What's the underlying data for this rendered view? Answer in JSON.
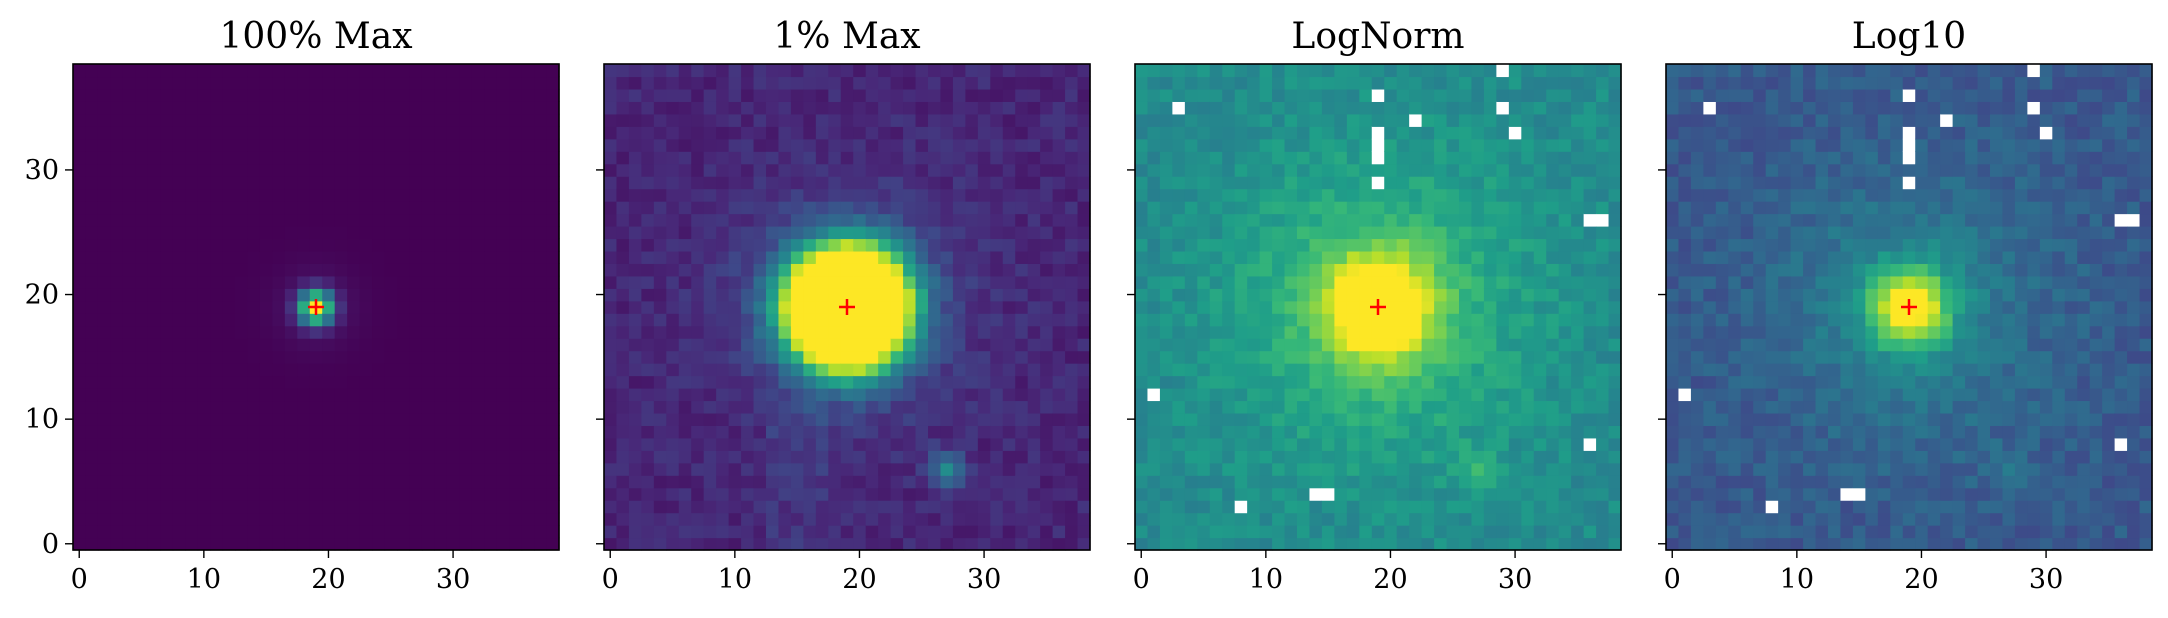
{
  "figure": {
    "panel_titles": [
      "100% Max",
      "1% Max",
      "LogNorm",
      "Log10"
    ]
  },
  "chart_data": [
    {
      "type": "heatmap",
      "title": "100% Max",
      "colormap": "viridis",
      "grid_size": 39,
      "xlim": [
        -0.5,
        38.5
      ],
      "ylim": [
        -0.5,
        38.5
      ],
      "xticks": [
        0,
        10,
        20,
        30
      ],
      "yticks": [
        0,
        10,
        20,
        30
      ],
      "show_ytick_labels": true,
      "source_peak": [
        19,
        19
      ],
      "secondary_source": [
        27,
        6
      ],
      "marker": {
        "x": 19,
        "y": 19,
        "symbol": "+",
        "color": "#ff0000"
      },
      "missing_pixels": []
    },
    {
      "type": "heatmap",
      "title": "1% Max",
      "colormap": "viridis",
      "grid_size": 39,
      "xlim": [
        -0.5,
        38.5
      ],
      "ylim": [
        -0.5,
        38.5
      ],
      "xticks": [
        0,
        10,
        20,
        30
      ],
      "yticks": [
        0,
        10,
        20,
        30
      ],
      "show_ytick_labels": false,
      "source_peak": [
        19,
        19
      ],
      "secondary_source": [
        27,
        6
      ],
      "marker": {
        "x": 19,
        "y": 19,
        "symbol": "+",
        "color": "#ff0000"
      },
      "missing_pixels": []
    },
    {
      "type": "heatmap",
      "title": "LogNorm",
      "colormap": "viridis",
      "grid_size": 39,
      "xlim": [
        -0.5,
        38.5
      ],
      "ylim": [
        -0.5,
        38.5
      ],
      "xticks": [
        0,
        10,
        20,
        30
      ],
      "yticks": [
        0,
        10,
        20,
        30
      ],
      "show_ytick_labels": false,
      "source_peak": [
        19,
        19
      ],
      "secondary_source": [
        27,
        6
      ],
      "marker": {
        "x": 19,
        "y": 19,
        "symbol": "+",
        "color": "#ff0000"
      },
      "missing_pixels": [
        [
          29,
          38
        ],
        [
          3,
          35
        ],
        [
          19,
          36
        ],
        [
          29,
          35
        ],
        [
          22,
          34
        ],
        [
          30,
          33
        ],
        [
          19,
          33
        ],
        [
          19,
          32
        ],
        [
          19,
          31
        ],
        [
          19,
          29
        ],
        [
          36,
          26
        ],
        [
          37,
          26
        ],
        [
          1,
          12
        ],
        [
          36,
          8
        ],
        [
          14,
          4
        ],
        [
          15,
          4
        ],
        [
          8,
          3
        ]
      ]
    },
    {
      "type": "heatmap",
      "title": "Log10",
      "colormap": "viridis",
      "grid_size": 39,
      "xlim": [
        -0.5,
        38.5
      ],
      "ylim": [
        -0.5,
        38.5
      ],
      "xticks": [
        0,
        10,
        20,
        30
      ],
      "yticks": [
        0,
        10,
        20,
        30
      ],
      "show_ytick_labels": false,
      "source_peak": [
        19,
        19
      ],
      "secondary_source": [
        27,
        6
      ],
      "marker": {
        "x": 19,
        "y": 19,
        "symbol": "+",
        "color": "#ff0000"
      },
      "missing_pixels": [
        [
          29,
          38
        ],
        [
          3,
          35
        ],
        [
          19,
          36
        ],
        [
          29,
          35
        ],
        [
          22,
          34
        ],
        [
          30,
          33
        ],
        [
          19,
          33
        ],
        [
          19,
          32
        ],
        [
          19,
          31
        ],
        [
          19,
          29
        ],
        [
          36,
          26
        ],
        [
          37,
          26
        ],
        [
          1,
          12
        ],
        [
          36,
          8
        ],
        [
          14,
          4
        ],
        [
          15,
          4
        ],
        [
          8,
          3
        ]
      ]
    }
  ]
}
